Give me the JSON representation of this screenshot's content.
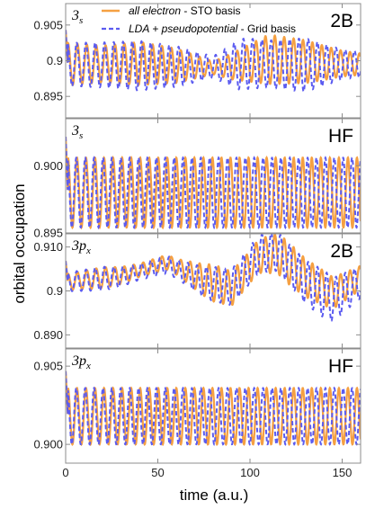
{
  "chart_data": {
    "type": "line",
    "xlabel": "time (a.u.)",
    "ylabel": "orbital occupation",
    "xlim": [
      0,
      160
    ],
    "x_ticks": [
      0,
      50,
      100,
      150
    ],
    "x_tick_labels": [
      "0",
      "50",
      "100",
      "150"
    ],
    "legend": {
      "placement": "top-center",
      "entries": [
        {
          "italic": "all electron",
          "rest": " - STO basis",
          "color": "#F5A042",
          "style": "solid"
        },
        {
          "italic": "LDA + pseudopotential",
          "rest": " - Grid basis",
          "color": "#5B5BF0",
          "style": "dashed"
        }
      ]
    },
    "panels": [
      {
        "orbital": "3s",
        "orbital_base": "3",
        "orbital_sub": "s",
        "tag": "2B",
        "ylim": [
          0.892,
          0.908
        ],
        "y_ticks": [
          0.895,
          0.9,
          0.905
        ],
        "y_tick_labels": [
          "0.895",
          "0.9",
          "0.905"
        ],
        "center": 0.8995,
        "amplitude": 0.003,
        "period": 5.1,
        "series": [
          {
            "name": "all electron - STO basis",
            "color": "#F5A042",
            "style": "solid",
            "envelope_t": [
              0,
              20,
              40,
              60,
              80,
              90,
              110,
              130,
              150,
              160
            ],
            "envelope_a": [
              1.0,
              0.85,
              1.0,
              0.8,
              0.3,
              0.6,
              1.15,
              1.0,
              0.6,
              0.5
            ],
            "drift_t": [
              0,
              40,
              80,
              90,
              110,
              140,
              160
            ],
            "drift": [
              0.0,
              0.0001,
              -0.0005,
              -0.0003,
              0.0007,
              0.0002,
              0.0
            ]
          },
          {
            "name": "LDA + pseudopotential - Grid basis",
            "color": "#5B5BF0",
            "style": "dashed",
            "envelope_t": [
              0,
              20,
              40,
              60,
              80,
              95,
              110,
              130,
              150,
              160
            ],
            "envelope_a": [
              1.0,
              1.05,
              1.15,
              0.95,
              0.5,
              1.2,
              1.1,
              1.25,
              0.7,
              0.6
            ],
            "drift_t": [
              0,
              40,
              80,
              100,
              130,
              160
            ],
            "drift": [
              0.0,
              -0.0002,
              -0.0004,
              0.0001,
              -0.0001,
              0.0
            ]
          }
        ]
      },
      {
        "orbital": "3s",
        "orbital_base": "3",
        "orbital_sub": "s",
        "tag": "HF",
        "ylim": [
          0.895,
          0.9035
        ],
        "y_ticks": [
          0.895,
          0.9
        ],
        "y_tick_labels": [
          "0.895",
          "0.900"
        ],
        "center": 0.898,
        "amplitude": 0.0026,
        "period": 4.9,
        "series": [
          {
            "name": "all electron - STO basis",
            "color": "#F5A042",
            "style": "solid",
            "envelope_t": [
              0,
              160
            ],
            "envelope_a": [
              1.0,
              1.0
            ],
            "drift_t": [
              0,
              160
            ],
            "drift": [
              0,
              0
            ]
          },
          {
            "name": "LDA + pseudopotential - Grid basis",
            "color": "#5B5BF0",
            "style": "dashed",
            "envelope_t": [
              0,
              160
            ],
            "envelope_a": [
              1.0,
              1.0
            ],
            "drift_t": [
              0,
              160
            ],
            "drift": [
              0,
              0
            ]
          }
        ]
      },
      {
        "orbital": "3px",
        "orbital_base": "3p",
        "orbital_sub": "x",
        "tag": "2B",
        "ylim": [
          0.887,
          0.913
        ],
        "y_ticks": [
          0.89,
          0.9,
          0.91
        ],
        "y_tick_labels": [
          "0.890",
          "0.9",
          "0.910"
        ],
        "center": 0.902,
        "amplitude": 0.003,
        "period": 5.1,
        "series": [
          {
            "name": "all electron - STO basis",
            "color": "#F5A042",
            "style": "solid",
            "envelope_t": [
              0,
              20,
              40,
              60,
              80,
              100,
              120,
              140,
              160
            ],
            "envelope_a": [
              0.6,
              0.8,
              0.5,
              0.6,
              1.4,
              1.2,
              1.6,
              1.3,
              0.9
            ],
            "drift_t": [
              0,
              30,
              55,
              75,
              90,
              105,
              115,
              130,
              145,
              160
            ],
            "drift": [
              0.0,
              0.0015,
              0.0045,
              0.0005,
              -0.0015,
              0.006,
              0.0065,
              0.001,
              -0.0025,
              0.001
            ]
          },
          {
            "name": "LDA + pseudopotential - Grid basis",
            "color": "#5B5BF0",
            "style": "dashed",
            "envelope_t": [
              0,
              20,
              40,
              60,
              80,
              100,
              120,
              140,
              160
            ],
            "envelope_a": [
              0.7,
              0.9,
              0.6,
              0.7,
              1.3,
              1.4,
              1.5,
              1.8,
              1.2
            ],
            "drift_t": [
              0,
              30,
              55,
              75,
              90,
              105,
              115,
              130,
              145,
              160
            ],
            "drift": [
              0.0,
              0.0012,
              0.004,
              0.0,
              -0.0012,
              0.0065,
              0.007,
              0.0,
              -0.004,
              0.0
            ]
          }
        ]
      },
      {
        "orbital": "3px",
        "orbital_base": "3p",
        "orbital_sub": "x",
        "tag": "HF",
        "ylim": [
          0.8988,
          0.9061
        ],
        "y_ticks": [
          0.9,
          0.905
        ],
        "y_tick_labels": [
          "0.900",
          "0.905"
        ],
        "center": 0.9018,
        "amplitude": 0.0018,
        "period": 4.9,
        "series": [
          {
            "name": "all electron - STO basis",
            "color": "#F5A042",
            "style": "solid",
            "envelope_t": [
              0,
              160
            ],
            "envelope_a": [
              1.0,
              1.0
            ],
            "drift_t": [
              0,
              160
            ],
            "drift": [
              0,
              0
            ]
          },
          {
            "name": "LDA + pseudopotential - Grid basis",
            "color": "#5B5BF0",
            "style": "dashed",
            "envelope_t": [
              0,
              160
            ],
            "envelope_a": [
              1.0,
              1.0
            ],
            "drift_t": [
              0,
              160
            ],
            "drift": [
              0,
              0
            ]
          }
        ]
      }
    ]
  }
}
